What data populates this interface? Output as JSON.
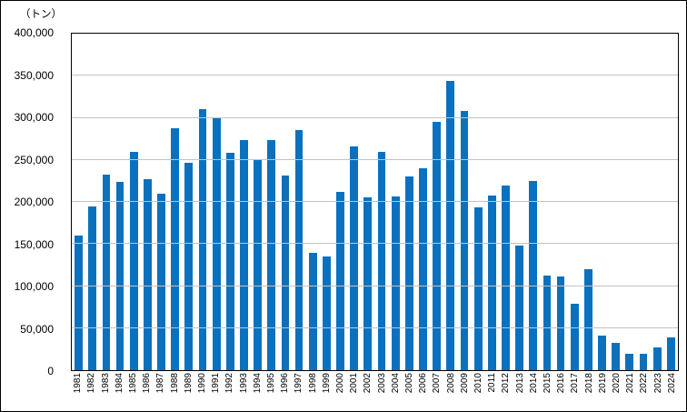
{
  "chart_data": {
    "type": "bar",
    "title": "",
    "unit_label": "（トン）",
    "xlabel": "",
    "ylabel": "トン",
    "x": [
      "1981",
      "1982",
      "1983",
      "1984",
      "1985",
      "1986",
      "1987",
      "1988",
      "1989",
      "1990",
      "1991",
      "1992",
      "1993",
      "1994",
      "1995",
      "1996",
      "1997",
      "1998",
      "1999",
      "2000",
      "2001",
      "2002",
      "2003",
      "2004",
      "2005",
      "2006",
      "2007",
      "2008",
      "2009",
      "2010",
      "2011",
      "2012",
      "2013",
      "2014",
      "2015",
      "2016",
      "2017",
      "2018",
      "2019",
      "2020",
      "2021",
      "2022",
      "2023",
      "2024"
    ],
    "values": [
      160000,
      195000,
      232000,
      224000,
      260000,
      227000,
      210000,
      288000,
      247000,
      310000,
      300000,
      258000,
      273000,
      250000,
      273000,
      231000,
      285000,
      140000,
      135000,
      212000,
      266000,
      205000,
      260000,
      206000,
      230000,
      240000,
      295000,
      344000,
      308000,
      194000,
      208000,
      219000,
      148000,
      225000,
      112000,
      111000,
      79000,
      120000,
      41000,
      32000,
      20000,
      20000,
      27000,
      39000
    ],
    "ylim": [
      0,
      400000
    ],
    "ytick_interval": 50000,
    "ytick_labels": [
      "400,000",
      "350,000",
      "300,000",
      "250,000",
      "200,000",
      "150,000",
      "100,000",
      "50,000",
      "0"
    ],
    "grid": true,
    "legend_position": "none",
    "colors": {
      "bar": "#0B71BE",
      "gridline": "#C3C3C3",
      "axis": "#000000",
      "background": "#FFFFFF",
      "text": "#000000"
    }
  }
}
